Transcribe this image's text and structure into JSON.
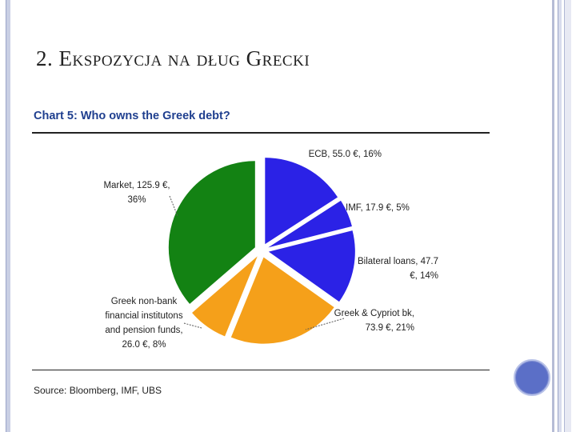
{
  "slide": {
    "title": "2. Ekspozycja na dług Grecki"
  },
  "source_note": "Source: Bloomberg, IMF, UBS",
  "chart_data": {
    "type": "pie",
    "title": "Chart 5: Who owns the Greek debt?",
    "unit": "€",
    "slices": [
      {
        "name": "ECB",
        "value": 55.0,
        "percent": 16,
        "color": "#2b22e6",
        "label_lines": [
          "ECB, 55.0 €, 16%"
        ]
      },
      {
        "name": "IMF",
        "value": 17.9,
        "percent": 5,
        "color": "#2b22e6",
        "label_lines": [
          "IMF, 17.9 €, 5%"
        ]
      },
      {
        "name": "Bilateral loans",
        "value": 47.7,
        "percent": 14,
        "color": "#2b22e6",
        "label_lines": [
          "Bilateral loans, 47.7",
          "€, 14%"
        ]
      },
      {
        "name": "Greek & Cypriot bk",
        "value": 73.9,
        "percent": 21,
        "color": "#f5a01a",
        "label_lines": [
          "Greek & Cypriot bk,",
          "73.9 €, 21%"
        ]
      },
      {
        "name": "Greek non-bank financial institutons and pension funds",
        "value": 26.0,
        "percent": 8,
        "color": "#f5a01a",
        "label_lines": [
          "Greek non-bank",
          "financial institutons",
          "and pension funds,",
          "26.0 €, 8%"
        ]
      },
      {
        "name": "Market",
        "value": 125.9,
        "percent": 36,
        "color": "#138213",
        "label_lines": [
          "Market, 125.9 €,",
          "36%"
        ]
      }
    ]
  }
}
